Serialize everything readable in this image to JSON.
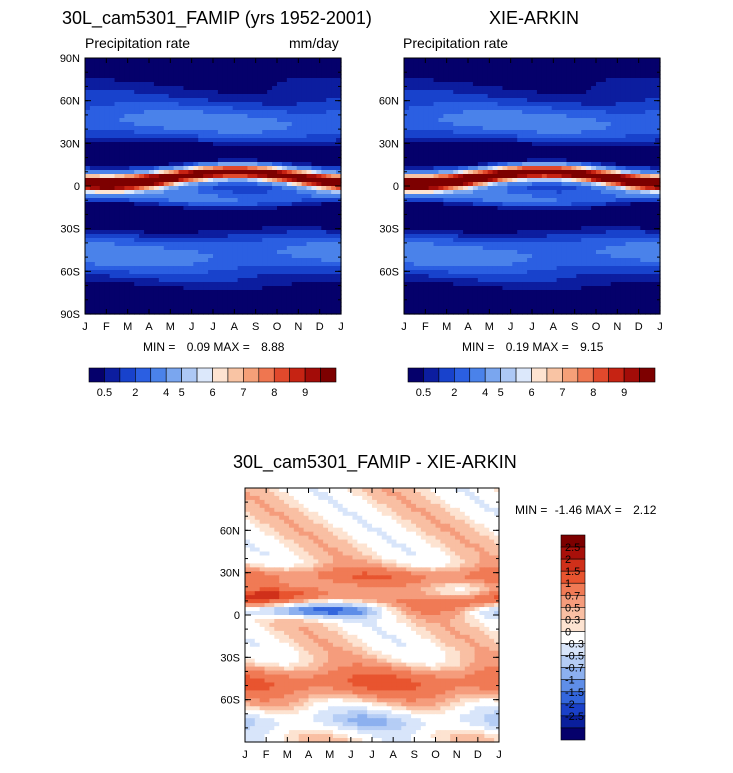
{
  "chart_data": [
    {
      "type": "heatmap",
      "title": "30L_cam5301_FAMIP (yrs 1952-2001)",
      "subtitle_left": "Precipitation rate",
      "subtitle_right": "mm/day",
      "stats": {
        "min_label": "MIN =",
        "min": "0.09",
        "max_label": "MAX =",
        "max": "8.88"
      },
      "x_ticks": [
        "J",
        "F",
        "M",
        "A",
        "M",
        "J",
        "J",
        "A",
        "S",
        "O",
        "N",
        "D",
        "J"
      ],
      "y_ticks": [
        "90N",
        "60N",
        "30N",
        "0",
        "30S",
        "60S",
        "90S"
      ],
      "y_values": [
        90,
        60,
        30,
        0,
        -30,
        -60,
        -90
      ],
      "colorbar": {
        "orientation": "horizontal",
        "labels": [
          "0.5",
          "2",
          "4",
          "5",
          "6",
          "7",
          "8",
          "9"
        ]
      },
      "itcz_peak": 8.9
    },
    {
      "type": "heatmap",
      "title": "XIE-ARKIN",
      "subtitle_left": "Precipitation rate",
      "stats": {
        "min_label": "MIN =",
        "min": "0.19",
        "max_label": "MAX =",
        "max": "9.15"
      },
      "x_ticks": [
        "J",
        "F",
        "M",
        "A",
        "M",
        "J",
        "J",
        "A",
        "S",
        "O",
        "N",
        "D",
        "J"
      ],
      "y_ticks": [
        "60N",
        "30N",
        "0",
        "30S",
        "60S"
      ],
      "y_values": [
        60,
        30,
        0,
        -30,
        -60
      ],
      "colorbar": {
        "orientation": "horizontal",
        "labels": [
          "0.5",
          "2",
          "4",
          "5",
          "6",
          "7",
          "8",
          "9"
        ]
      },
      "itcz_peak": 9.2
    },
    {
      "type": "heatmap",
      "title": "30L_cam5301_FAMIP - XIE-ARKIN",
      "stats": {
        "min_label": "MIN =",
        "min": "-1.46",
        "max_label": "MAX =",
        "max": "2.12"
      },
      "x_ticks": [
        "J",
        "F",
        "M",
        "A",
        "M",
        "J",
        "J",
        "A",
        "S",
        "O",
        "N",
        "D",
        "J"
      ],
      "y_ticks": [
        "60N",
        "30N",
        "0",
        "30S",
        "60S"
      ],
      "y_values": [
        60,
        30,
        0,
        -30,
        -60
      ],
      "colorbar": {
        "orientation": "vertical",
        "labels": [
          "2.5",
          "2",
          "1.5",
          "1",
          "0.7",
          "0.5",
          "0.3",
          "0",
          "-0.3",
          "-0.5",
          "-0.7",
          "-1",
          "-1.5",
          "-2",
          "-2.5"
        ]
      }
    }
  ],
  "palettes": {
    "precip": [
      "#05006b",
      "#0c1d9f",
      "#1842cc",
      "#2b5fe2",
      "#4a82ea",
      "#7aa6ef",
      "#adc8f5",
      "#dce8fb",
      "#fde3d1",
      "#f9c4a4",
      "#f5a078",
      "#ef7650",
      "#e1492c",
      "#c62313",
      "#a30c08",
      "#7d0000"
    ],
    "diff": [
      "#7d0000",
      "#a8100a",
      "#d0301a",
      "#e8542f",
      "#f07a55",
      "#f59c7c",
      "#f9bfa3",
      "#fde3d1",
      "#ffffff",
      "#d8e5fa",
      "#b5cdf5",
      "#8cb0ef",
      "#5f8ee8",
      "#3366dd",
      "#1a40c8",
      "#0a1f9c",
      "#05006b"
    ]
  }
}
